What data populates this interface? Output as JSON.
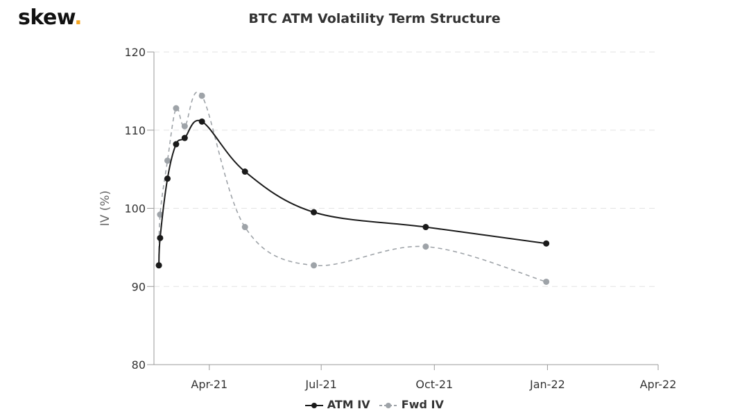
{
  "logo": {
    "text": "skew",
    "dot": ".",
    "dot_color": "#f5a623"
  },
  "chart_data": {
    "type": "line",
    "title": "BTC ATM Volatility Term Structure",
    "xlabel": "",
    "ylabel": "IV (%)",
    "xlim": [
      "2021-02-15",
      "2022-04-01"
    ],
    "ylim": [
      80,
      120
    ],
    "y_ticks": [
      80,
      90,
      100,
      110,
      120
    ],
    "x_ticks": [
      {
        "date": "2021-04-01",
        "label": "Apr-21"
      },
      {
        "date": "2021-07-01",
        "label": "Jul-21"
      },
      {
        "date": "2021-10-01",
        "label": "Oct-21"
      },
      {
        "date": "2022-01-01",
        "label": "Jan-22"
      },
      {
        "date": "2022-04-01",
        "label": "Apr-22"
      }
    ],
    "grid": "horizontal dashed",
    "legend": "bottom-center",
    "x": [
      "2021-02-19",
      "2021-02-20",
      "2021-02-26",
      "2021-03-05",
      "2021-03-12",
      "2021-03-26",
      "2021-04-30",
      "2021-06-25",
      "2021-09-24",
      "2021-12-31"
    ],
    "series": [
      {
        "name": "ATM IV",
        "color": "#1a1a1a",
        "style": "solid",
        "values": [
          92.7,
          96.2,
          103.8,
          108.2,
          109.0,
          111.1,
          104.7,
          99.5,
          97.6,
          95.5
        ]
      },
      {
        "name": "Fwd IV",
        "color": "#9ea3a8",
        "style": "dashed",
        "values": [
          92.7,
          99.2,
          106.1,
          112.8,
          110.5,
          114.4,
          97.6,
          92.7,
          95.1,
          90.6
        ]
      }
    ]
  }
}
